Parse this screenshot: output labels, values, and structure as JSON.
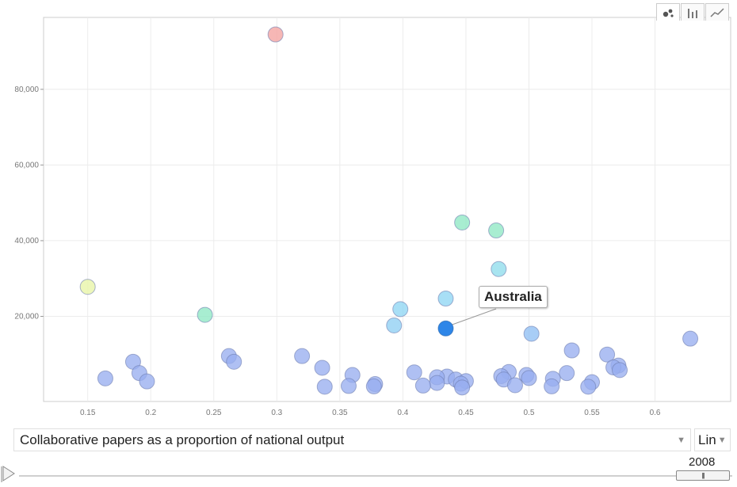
{
  "view_tabs": [
    {
      "name": "bubble-chart-icon",
      "active": true
    },
    {
      "name": "bar-chart-icon",
      "active": false
    },
    {
      "name": "line-chart-icon",
      "active": false
    }
  ],
  "controls": {
    "x_axis_selector": "Collaborative papers as a proportion of national output",
    "scale_selector": "Lin",
    "year": "2008",
    "tooltip": "Australia"
  },
  "chart_data": {
    "type": "scatter",
    "xlim": [
      0.115,
      0.66
    ],
    "ylim": [
      -2500,
      99000
    ],
    "xticks": [
      0.15,
      0.2,
      0.25,
      0.3,
      0.35,
      0.4,
      0.45,
      0.5,
      0.55,
      0.6
    ],
    "xtick_labels": [
      "0.15",
      "0.2",
      "0.25",
      "0.3",
      "0.35",
      "0.4",
      "0.45",
      "0.5",
      "0.55",
      "0.6"
    ],
    "yticks": [
      20000,
      40000,
      60000,
      80000
    ],
    "ytick_labels": [
      "20,000",
      "40,000",
      "60,000",
      "80,000"
    ],
    "grid": true,
    "highlighted": "Australia",
    "points": [
      {
        "x": 0.299,
        "y": 94500,
        "color": "#f4a3a0"
      },
      {
        "x": 0.15,
        "y": 27800,
        "color": "#e8f5a6"
      },
      {
        "x": 0.243,
        "y": 20400,
        "color": "#8fe8c4"
      },
      {
        "x": 0.447,
        "y": 44800,
        "color": "#8fe8c4"
      },
      {
        "x": 0.474,
        "y": 42700,
        "color": "#8fe8c4"
      },
      {
        "x": 0.476,
        "y": 32500,
        "color": "#8fddec"
      },
      {
        "x": 0.434,
        "y": 24700,
        "color": "#8fd6f4"
      },
      {
        "x": 0.398,
        "y": 21900,
        "color": "#8fd6f4"
      },
      {
        "x": 0.393,
        "y": 17600,
        "color": "#8fd0f4"
      },
      {
        "x": 0.434,
        "y": 16800,
        "color": "#2e86e8",
        "label": "Australia"
      },
      {
        "x": 0.502,
        "y": 15400,
        "color": "#8fbff4"
      },
      {
        "x": 0.628,
        "y": 14100,
        "color": "#99aef0"
      },
      {
        "x": 0.534,
        "y": 11000,
        "color": "#99aef0"
      },
      {
        "x": 0.562,
        "y": 9900,
        "color": "#99aef0"
      },
      {
        "x": 0.32,
        "y": 9500,
        "color": "#99aef0"
      },
      {
        "x": 0.262,
        "y": 9500,
        "color": "#99aef0"
      },
      {
        "x": 0.266,
        "y": 8000,
        "color": "#99aef0"
      },
      {
        "x": 0.186,
        "y": 8000,
        "color": "#99aef0"
      },
      {
        "x": 0.571,
        "y": 7000,
        "color": "#99aef0"
      },
      {
        "x": 0.567,
        "y": 6500,
        "color": "#99aef0"
      },
      {
        "x": 0.336,
        "y": 6400,
        "color": "#99aef0"
      },
      {
        "x": 0.572,
        "y": 5800,
        "color": "#99aef0"
      },
      {
        "x": 0.409,
        "y": 5200,
        "color": "#99aef0"
      },
      {
        "x": 0.484,
        "y": 5300,
        "color": "#99aef0"
      },
      {
        "x": 0.53,
        "y": 5000,
        "color": "#99aef0"
      },
      {
        "x": 0.191,
        "y": 5000,
        "color": "#99aef0"
      },
      {
        "x": 0.36,
        "y": 4500,
        "color": "#99aef0"
      },
      {
        "x": 0.498,
        "y": 4500,
        "color": "#99aef0"
      },
      {
        "x": 0.478,
        "y": 4200,
        "color": "#99aef0"
      },
      {
        "x": 0.435,
        "y": 4100,
        "color": "#99aef0"
      },
      {
        "x": 0.427,
        "y": 3900,
        "color": "#99aef0"
      },
      {
        "x": 0.164,
        "y": 3600,
        "color": "#99aef0"
      },
      {
        "x": 0.5,
        "y": 3700,
        "color": "#99aef0"
      },
      {
        "x": 0.519,
        "y": 3500,
        "color": "#99aef0"
      },
      {
        "x": 0.48,
        "y": 3300,
        "color": "#99aef0"
      },
      {
        "x": 0.442,
        "y": 3300,
        "color": "#99aef0"
      },
      {
        "x": 0.197,
        "y": 2800,
        "color": "#99aef0"
      },
      {
        "x": 0.45,
        "y": 2900,
        "color": "#99aef0"
      },
      {
        "x": 0.55,
        "y": 2600,
        "color": "#99aef0"
      },
      {
        "x": 0.427,
        "y": 2400,
        "color": "#99aef0"
      },
      {
        "x": 0.446,
        "y": 2200,
        "color": "#99aef0"
      },
      {
        "x": 0.378,
        "y": 2100,
        "color": "#99aef0"
      },
      {
        "x": 0.489,
        "y": 1800,
        "color": "#99aef0"
      },
      {
        "x": 0.416,
        "y": 1700,
        "color": "#99aef0"
      },
      {
        "x": 0.357,
        "y": 1600,
        "color": "#99aef0"
      },
      {
        "x": 0.377,
        "y": 1500,
        "color": "#99aef0"
      },
      {
        "x": 0.338,
        "y": 1400,
        "color": "#99aef0"
      },
      {
        "x": 0.518,
        "y": 1500,
        "color": "#99aef0"
      },
      {
        "x": 0.547,
        "y": 1400,
        "color": "#99aef0"
      },
      {
        "x": 0.447,
        "y": 1200,
        "color": "#99aef0"
      }
    ]
  }
}
